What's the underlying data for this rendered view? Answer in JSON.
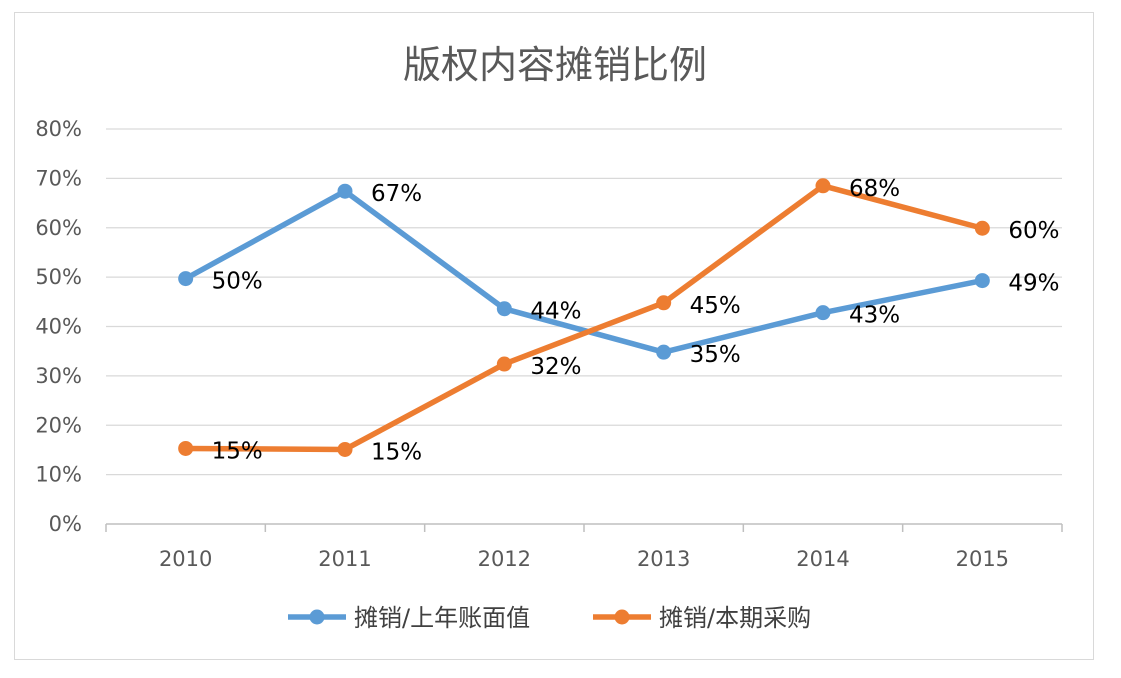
{
  "chart_data": {
    "type": "line",
    "title": "版权内容摊销比例",
    "x": [
      "2010",
      "2011",
      "2012",
      "2013",
      "2014",
      "2015"
    ],
    "ylim": [
      0,
      0.8
    ],
    "y_ticks": [
      "0%",
      "10%",
      "20%",
      "30%",
      "40%",
      "50%",
      "60%",
      "70%",
      "80%"
    ],
    "grid": true,
    "legend_position": "bottom",
    "series": [
      {
        "name": "摊销/上年账面值",
        "color": "#5b9bd5",
        "values": [
          0.497,
          0.674,
          0.436,
          0.348,
          0.428,
          0.493
        ],
        "labels": [
          "50%",
          "67%",
          "44%",
          "35%",
          "43%",
          "49%"
        ]
      },
      {
        "name": "摊销/本期采购",
        "color": "#ed7d31",
        "values": [
          0.153,
          0.151,
          0.324,
          0.448,
          0.685,
          0.599
        ],
        "labels": [
          "15%",
          "15%",
          "32%",
          "45%",
          "68%",
          "60%"
        ]
      }
    ]
  }
}
